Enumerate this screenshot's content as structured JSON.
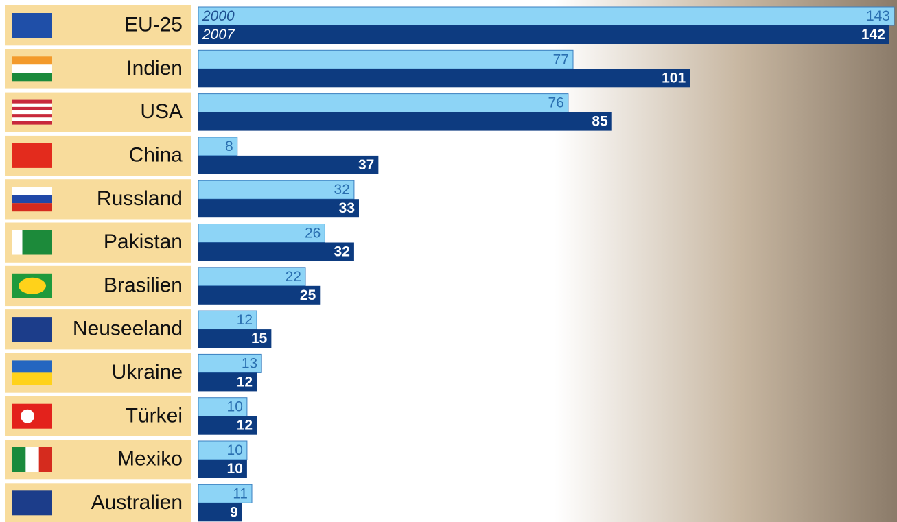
{
  "chart_data": {
    "type": "bar",
    "orientation": "horizontal",
    "categories": [
      "EU-25",
      "Indien",
      "USA",
      "China",
      "Russland",
      "Pakistan",
      "Brasilien",
      "Neuseeland",
      "Ukraine",
      "Türkei",
      "Mexiko",
      "Australien"
    ],
    "series": [
      {
        "name": "2000",
        "color": "#8dd4f6",
        "values": [
          143,
          77,
          76,
          8,
          32,
          26,
          22,
          12,
          13,
          10,
          10,
          11
        ]
      },
      {
        "name": "2007",
        "color": "#0d3b80",
        "values": [
          142,
          101,
          85,
          37,
          33,
          32,
          25,
          15,
          12,
          12,
          10,
          9
        ]
      }
    ]
  }
}
